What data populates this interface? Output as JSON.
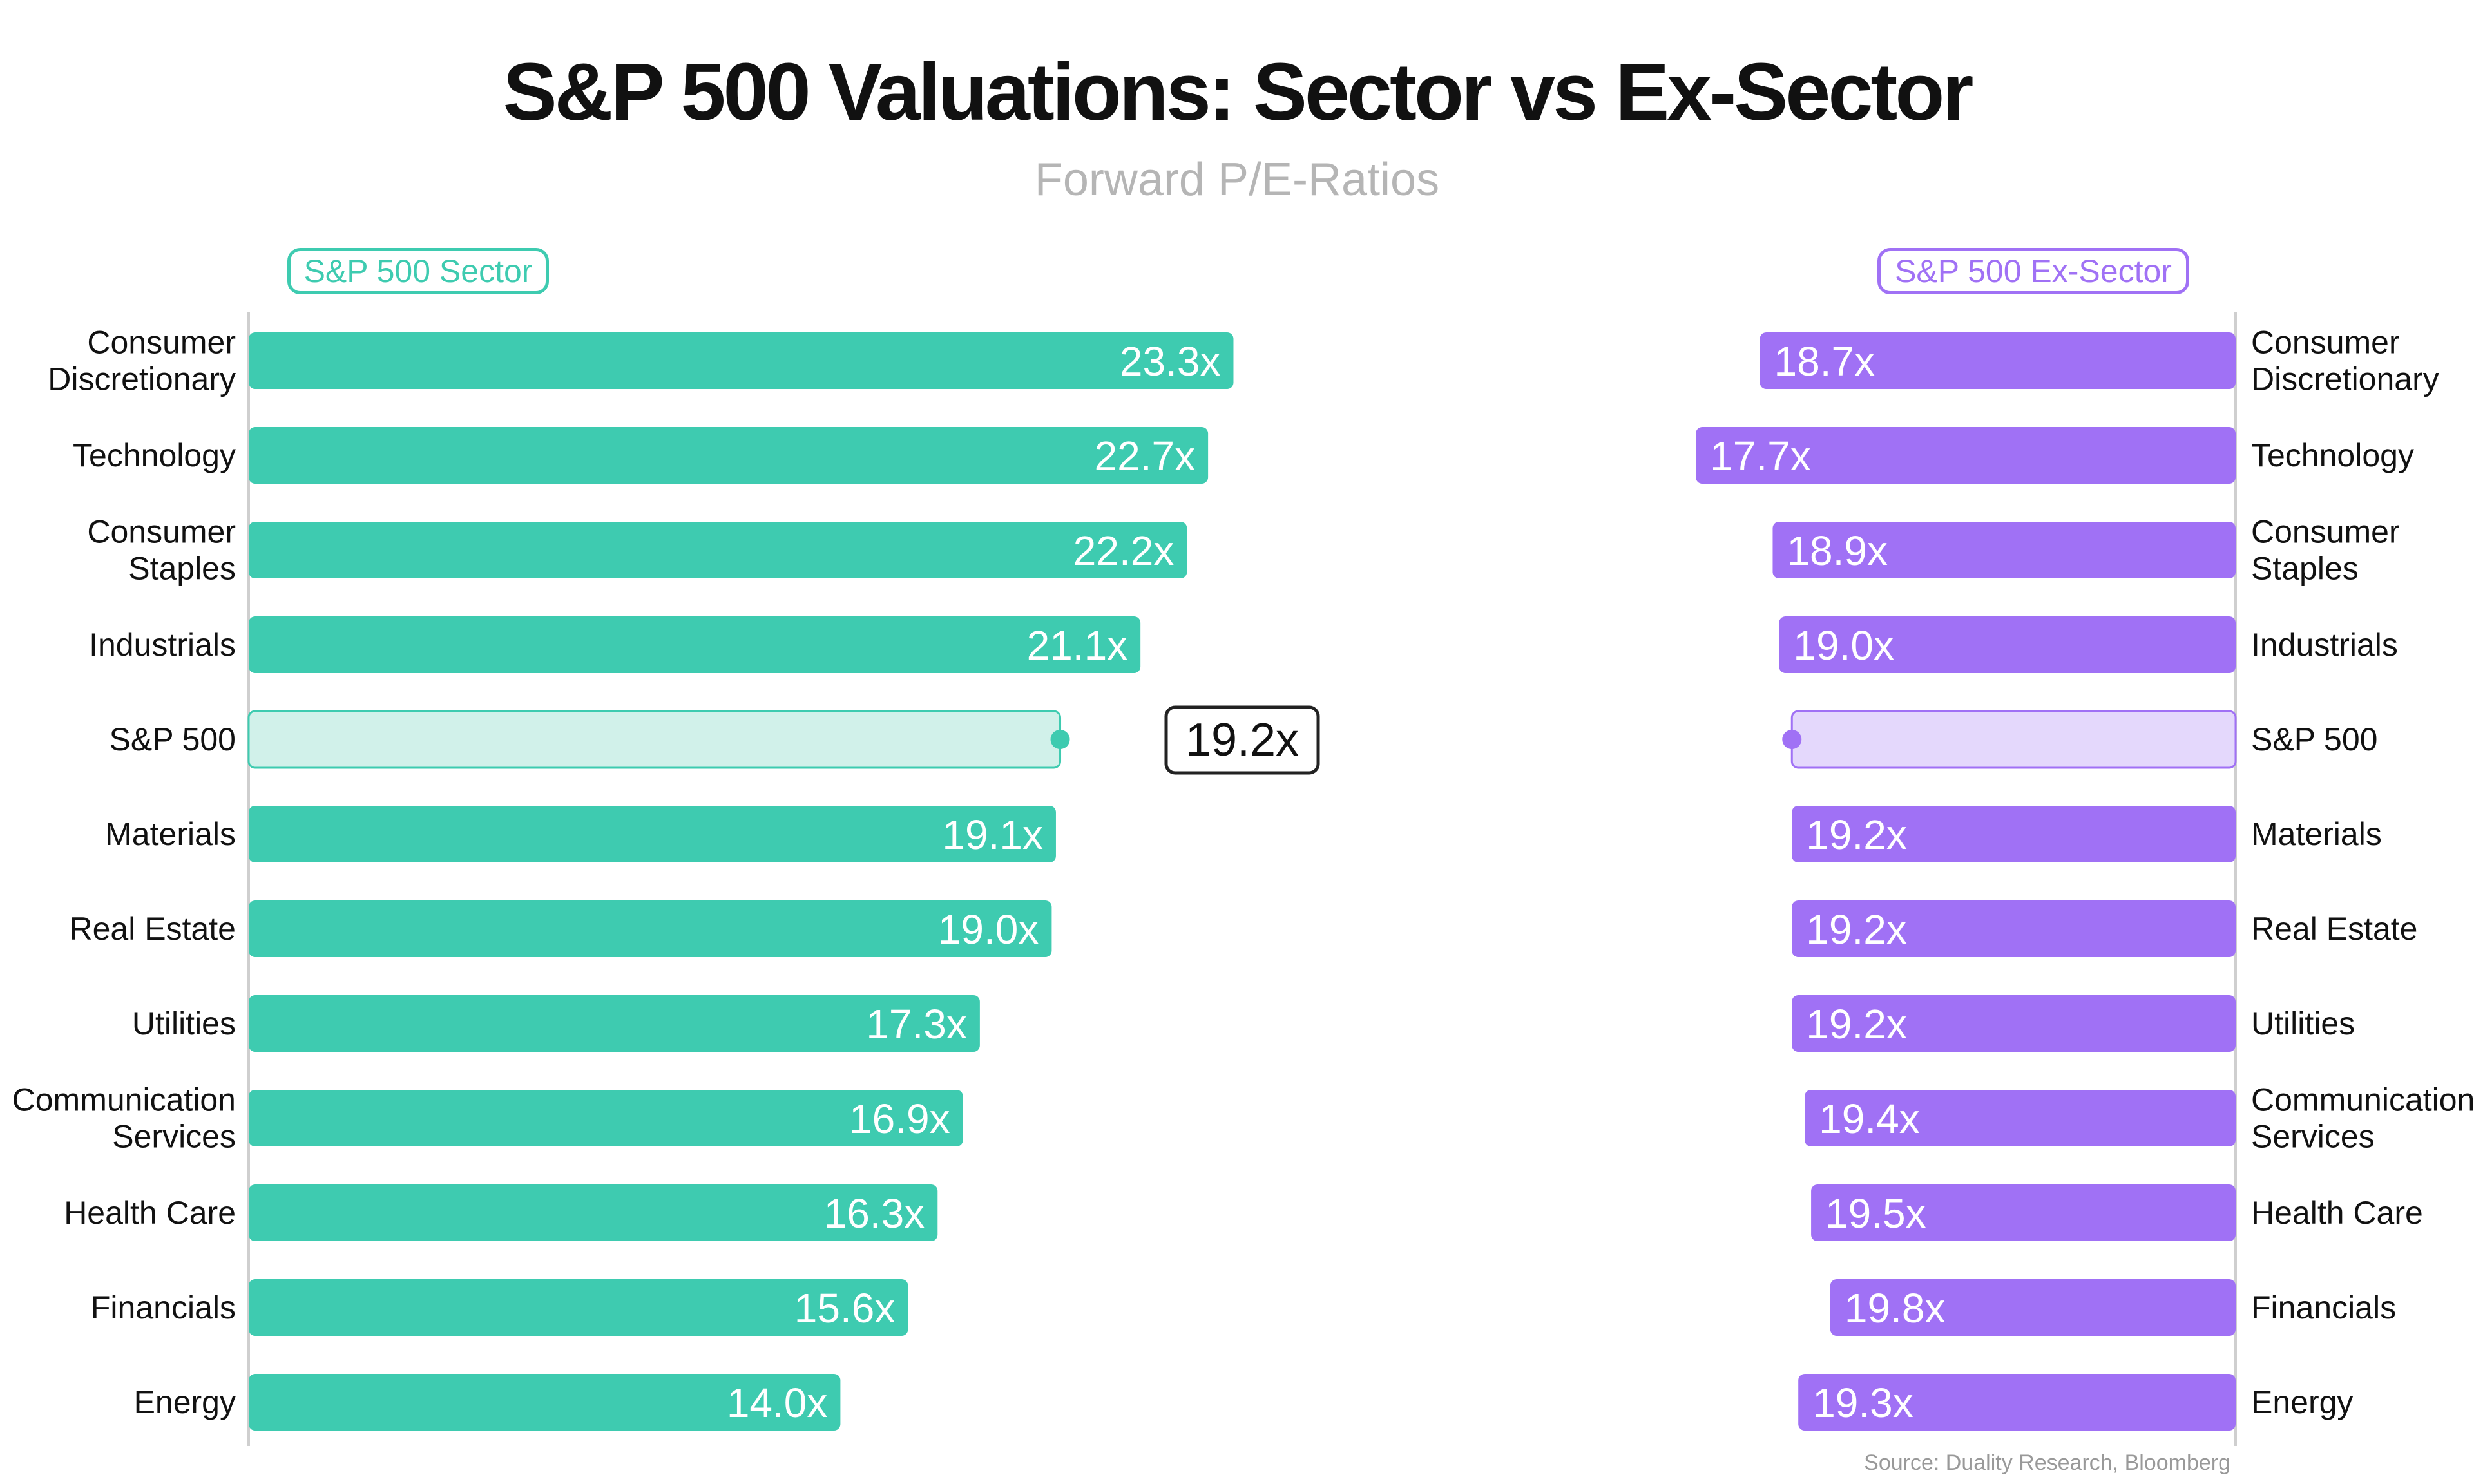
{
  "title": "S&P 500 Valuations: Sector vs Ex-Sector",
  "subtitle": "Forward P/E-Ratios",
  "legend": {
    "left": "S&P 500 Sector",
    "right": "S&P 500 Ex-Sector"
  },
  "source": "Source: Duality Research, Bloomberg",
  "colors": {
    "sector": "#3ecbb0",
    "ex_sector": "#a071f5",
    "sector_highlight": "#d1f1ea",
    "ex_sector_highlight": "#e4d8fc",
    "label_text": "#111111"
  },
  "chart_data": {
    "type": "bar",
    "orientation": "horizontal-mirrored",
    "categories": [
      [
        "Consumer",
        "Discretionary"
      ],
      [
        "Technology"
      ],
      [
        "Consumer",
        "Staples"
      ],
      [
        "Industrials"
      ],
      [
        "S&P 500"
      ],
      [
        "Materials"
      ],
      [
        "Real Estate"
      ],
      [
        "Utilities"
      ],
      [
        "Communication",
        "Services"
      ],
      [
        "Health Care"
      ],
      [
        "Financials"
      ],
      [
        "Energy"
      ]
    ],
    "series": [
      {
        "name": "S&P 500 Sector",
        "values": [
          23.3,
          22.7,
          22.2,
          21.1,
          19.2,
          19.1,
          19.0,
          17.3,
          16.9,
          16.3,
          15.6,
          14.0
        ],
        "labels": [
          "23.3x",
          "22.7x",
          "22.2x",
          "21.1x",
          "",
          "19.1x",
          "19.0x",
          "17.3x",
          "16.9x",
          "16.3x",
          "15.6x",
          "14.0x"
        ]
      },
      {
        "name": "S&P 500 Ex-Sector",
        "values": [
          18.7,
          17.7,
          18.9,
          19.0,
          19.2,
          19.2,
          19.2,
          19.2,
          19.4,
          19.5,
          19.8,
          19.3
        ],
        "labels": [
          "18.7x",
          "17.7x",
          "18.9x",
          "19.0x",
          "",
          "19.2x",
          "19.2x",
          "19.2x",
          "19.4x",
          "19.5x",
          "19.8x",
          "19.3x"
        ]
      }
    ],
    "benchmark_index": 4,
    "benchmark_value": 19.2,
    "benchmark_label": "19.2x"
  }
}
